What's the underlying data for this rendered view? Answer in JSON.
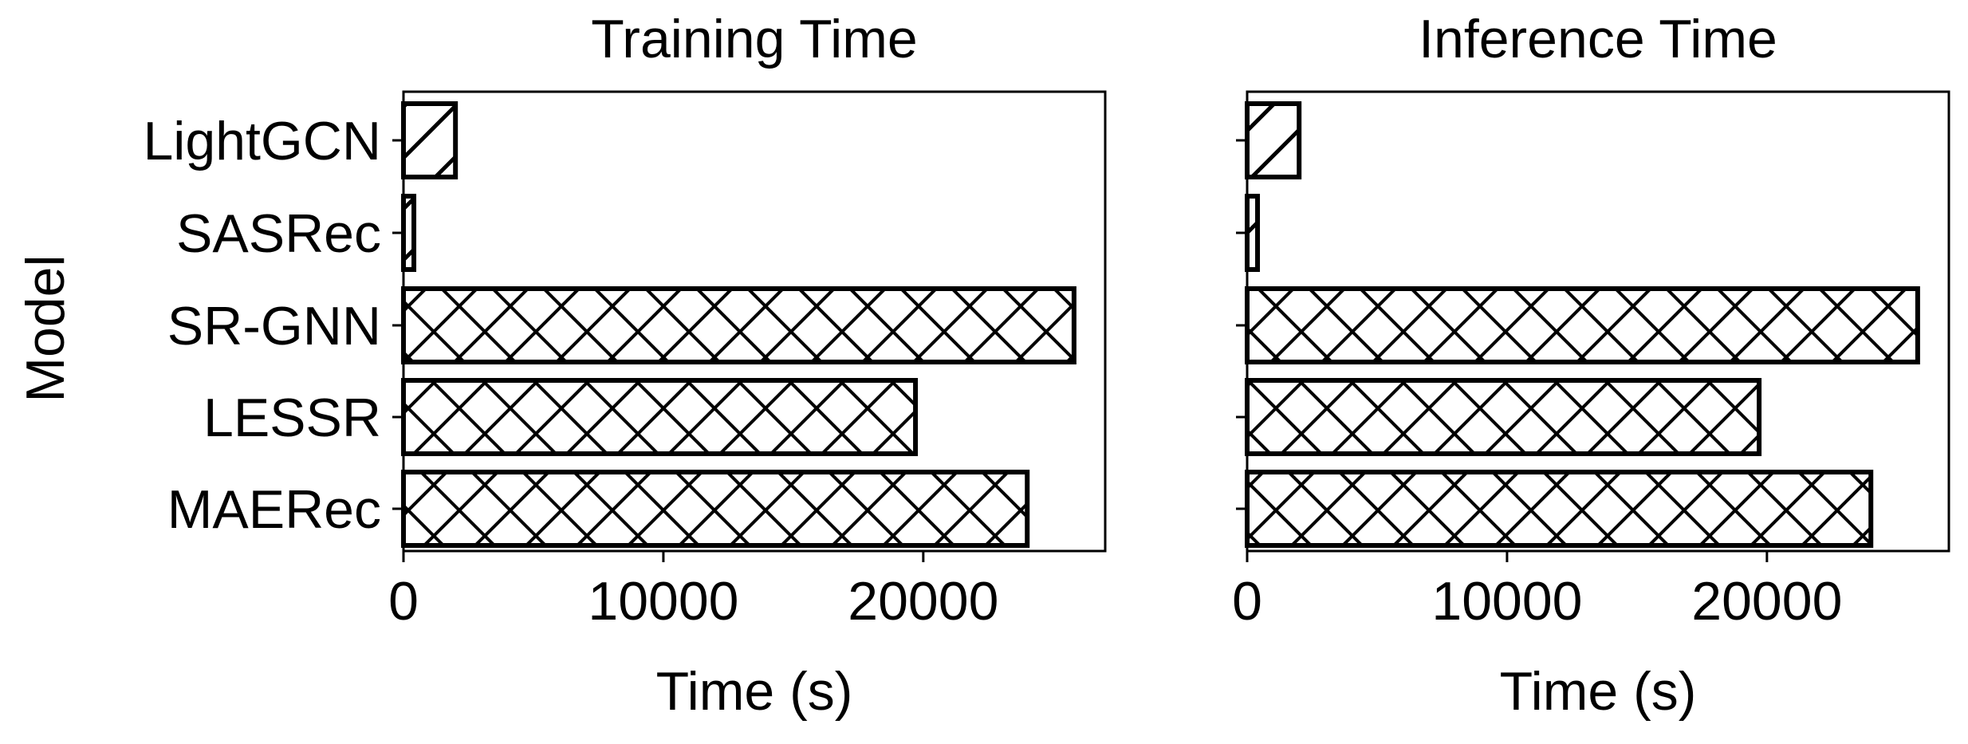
{
  "colors": {
    "bar_fill": "#ffffff",
    "bar_edge": "#000000",
    "hatch": "#000000",
    "axes": "#000000"
  },
  "chart_data": [
    {
      "type": "bar",
      "orientation": "horizontal",
      "title": "Training Time",
      "xlabel": "Time (s)",
      "ylabel": "Model",
      "categories": [
        "LightGCN",
        "SASRec",
        "SR-GNN",
        "LESSR",
        "MAERec"
      ],
      "values": [
        2000,
        400,
        25800,
        19700,
        24000
      ],
      "hatches": [
        "slash",
        "slash",
        "cross",
        "cross",
        "cross"
      ],
      "xlim": [
        0,
        27000
      ],
      "xticks": [
        0,
        10000,
        20000
      ],
      "xtick_labels": [
        "0",
        "10000",
        "20000"
      ],
      "grid": false
    },
    {
      "type": "bar",
      "orientation": "horizontal",
      "title": "Inference Time",
      "xlabel": "Time (s)",
      "ylabel": "",
      "categories": [
        "LightGCN",
        "SASRec",
        "SR-GNN",
        "LESSR",
        "MAERec"
      ],
      "values": [
        2000,
        400,
        25800,
        19700,
        24000
      ],
      "hatches": [
        "slash",
        "slash",
        "cross",
        "cross",
        "cross"
      ],
      "xlim": [
        0,
        27000
      ],
      "xticks": [
        0,
        10000,
        20000
      ],
      "xtick_labels": [
        "0",
        "10000",
        "20000"
      ],
      "grid": false,
      "show_category_labels": false
    }
  ]
}
